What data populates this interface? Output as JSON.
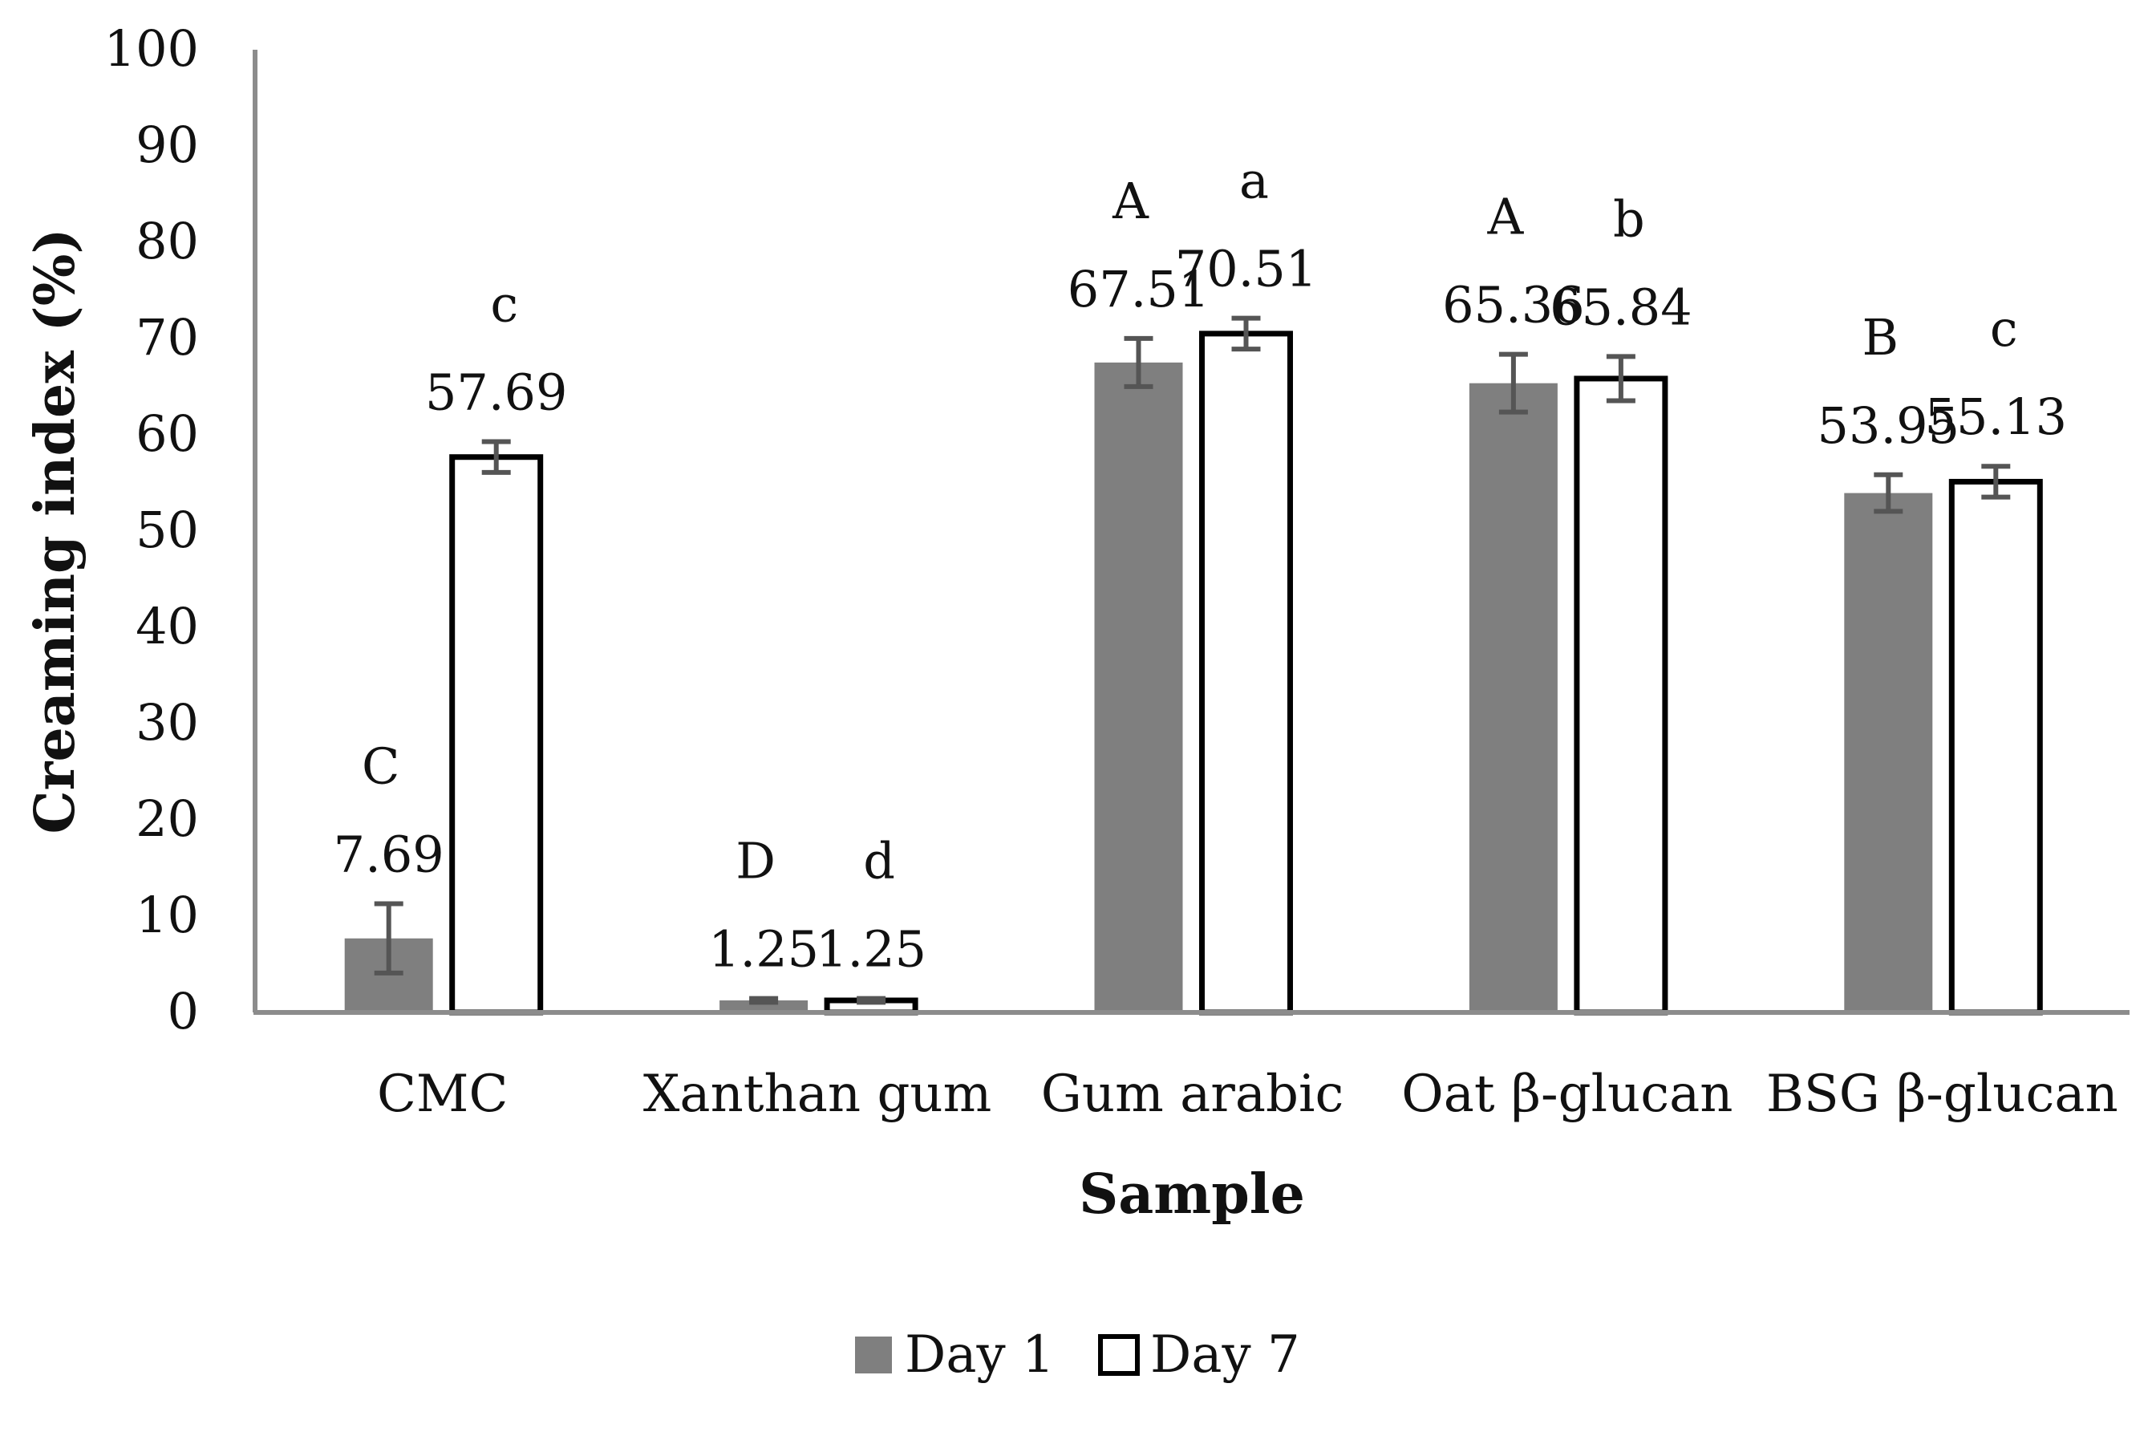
{
  "chart_data": {
    "type": "bar",
    "title": "",
    "xlabel": "Sample",
    "ylabel": "Creaming index (%)",
    "ylim": [
      0,
      100
    ],
    "yticks": [
      0,
      10,
      20,
      30,
      40,
      50,
      60,
      70,
      80,
      90,
      100
    ],
    "grid": false,
    "legend_position": "bottom",
    "categories": [
      "CMC",
      "Xanthan gum",
      "Gum arabic",
      "Oat β-glucan",
      "BSG β-glucan"
    ],
    "series": [
      {
        "name": "Day 1",
        "color": "#7f7f7f",
        "values": [
          7.69,
          1.25,
          67.51,
          65.36,
          53.95
        ],
        "value_labels": [
          "7.69",
          "1.25",
          "67.51",
          "65.36",
          "53.95"
        ],
        "errors": [
          3.6,
          0.2,
          2.5,
          3.0,
          1.9
        ],
        "significance": [
          "C",
          "D",
          "A",
          "A",
          "B"
        ]
      },
      {
        "name": "Day 7",
        "color": "#ffffff",
        "values": [
          57.69,
          1.25,
          70.51,
          65.84,
          55.13
        ],
        "value_labels": [
          "57.69",
          "1.25",
          "70.51",
          "65.84",
          "55.13"
        ],
        "errors": [
          1.6,
          0.2,
          1.6,
          2.3,
          1.6
        ],
        "significance": [
          "c",
          "d",
          "a",
          "b",
          "c"
        ]
      }
    ]
  }
}
